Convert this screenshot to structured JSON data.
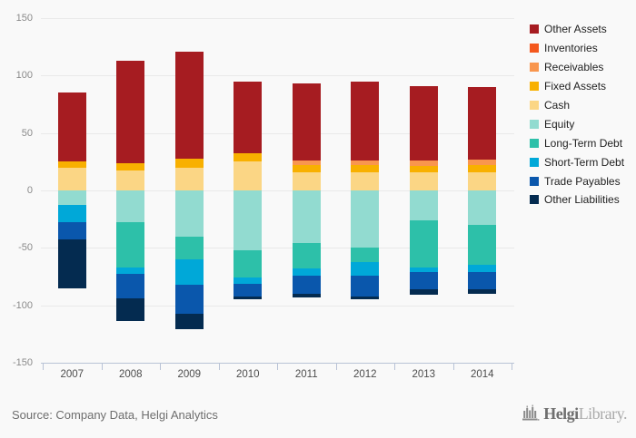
{
  "chart_data": {
    "type": "bar",
    "stacked": true,
    "title": "",
    "xlabel": "",
    "ylabel": "",
    "categories": [
      "2007",
      "2008",
      "2009",
      "2010",
      "2011",
      "2012",
      "2013",
      "2014"
    ],
    "series": [
      {
        "name": "Other Assets",
        "color": "#a61c21",
        "values": [
          60,
          89,
          93,
          63,
          67,
          69,
          65,
          63
        ]
      },
      {
        "name": "Inventories",
        "color": "#f4581d",
        "values": [
          0,
          0,
          0,
          0,
          0,
          0,
          0,
          0
        ]
      },
      {
        "name": "Receivables",
        "color": "#f9964e",
        "values": [
          0,
          0,
          0,
          0,
          4,
          4,
          5,
          5
        ]
      },
      {
        "name": "Fixed Assets",
        "color": "#f8b000",
        "values": [
          5,
          7,
          8,
          7,
          6,
          6,
          5,
          6
        ]
      },
      {
        "name": "Cash",
        "color": "#fbd685",
        "values": [
          20,
          17,
          20,
          25,
          16,
          16,
          16,
          16
        ]
      },
      {
        "name": "Equity",
        "color": "#92dbd0",
        "values": [
          -13,
          -28,
          -40,
          -52,
          -46,
          -50,
          -26,
          -30
        ]
      },
      {
        "name": "Long-Term Debt",
        "color": "#2dc0a9",
        "values": [
          0,
          -39,
          -20,
          -24,
          -22,
          -12,
          -41,
          -35
        ]
      },
      {
        "name": "Short-Term Debt",
        "color": "#00a8d8",
        "values": [
          -15,
          -6,
          -22,
          -5,
          -6,
          -12,
          -4,
          -6
        ]
      },
      {
        "name": "Trade Payables",
        "color": "#0a57ac",
        "values": [
          -15,
          -21,
          -25,
          -11,
          -16,
          -18,
          -15,
          -15
        ]
      },
      {
        "name": "Other Liabilities",
        "color": "#042b50",
        "values": [
          -42,
          -20,
          -14,
          -3,
          -3,
          -3,
          -5,
          -4
        ]
      }
    ],
    "stack_order_positive": [
      "Cash",
      "Fixed Assets",
      "Receivables",
      "Inventories",
      "Other Assets"
    ],
    "stack_order_negative": [
      "Equity",
      "Long-Term Debt",
      "Short-Term Debt",
      "Trade Payables",
      "Other Liabilities"
    ],
    "ylim": [
      -150,
      150
    ],
    "yticks": [
      150,
      100,
      50,
      0,
      -50,
      -100,
      -150
    ],
    "grid": true,
    "legend_position": "right"
  },
  "footer": {
    "source_text": "Source: Company Data, Helgi Analytics",
    "logo": {
      "helgi": "Helgi",
      "library": "Library."
    }
  },
  "colors": {
    "background": "#f9f9f9",
    "gridline": "#e9e9e9",
    "axis_line": "#b9c3d6",
    "y_tick_label": "#8a8a8a",
    "x_tick_label": "#4d4d4d",
    "legend_text": "#1f1f1f",
    "source_text": "#6e6e6e",
    "logo_helgi": "#6f6f6f",
    "logo_library": "#ababab",
    "logo_icon": "#8a8a8a"
  }
}
